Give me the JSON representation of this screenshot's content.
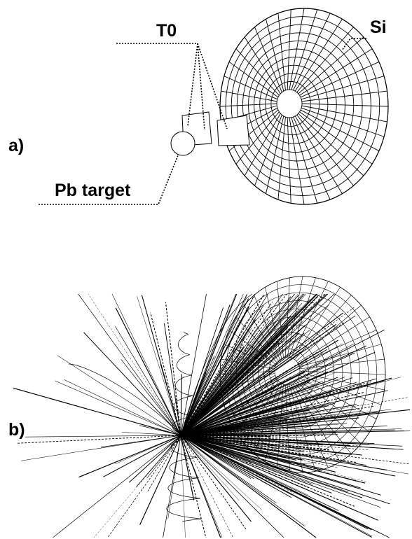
{
  "panel_a": {
    "label": "a)",
    "callouts": {
      "t0": "T0",
      "si": "Si",
      "target": "Pb target"
    }
  },
  "panel_b": {
    "label": "b)"
  }
}
